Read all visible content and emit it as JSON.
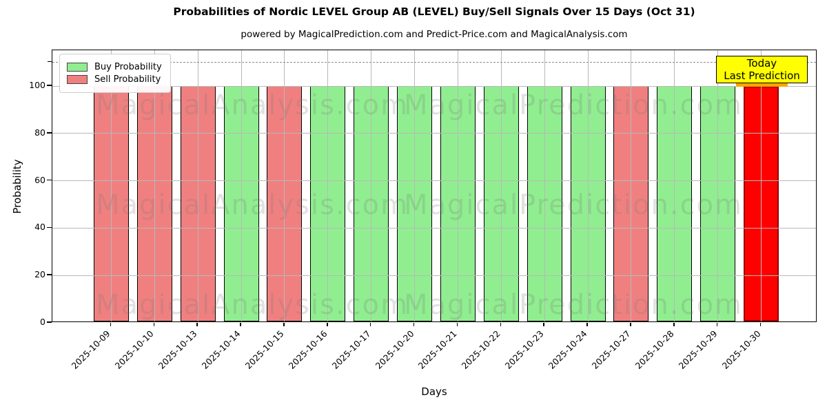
{
  "figure": {
    "title": "Probabilities of Nordic LEVEL Group AB (LEVEL) Buy/Sell Signals Over 15 Days (Oct 31)",
    "subtitle": "powered by MagicalPrediction.com and Predict-Price.com and MagicalAnalysis.com"
  },
  "axes": {
    "xlabel": "Days",
    "ylabel": "Probability",
    "yticks": [
      0,
      20,
      40,
      60,
      80,
      100
    ],
    "ylim": [
      0,
      115
    ],
    "dashed_line_y": 110,
    "grid": true
  },
  "legend": {
    "position": "upper left",
    "items": [
      {
        "label": "Buy Probability",
        "color": "#90EE90"
      },
      {
        "label": "Sell Probability",
        "color": "#F08080"
      }
    ]
  },
  "annotation": {
    "lines": [
      "Today",
      "Last Prediction"
    ],
    "bg_color": "#FFFF00"
  },
  "watermarks": {
    "left": "MagicalAnalysis.com",
    "right": "MagicalPrediction.com",
    "rows": 3
  },
  "colors": {
    "buy": "#90EE90",
    "sell": "#F08080",
    "today": "#FF0000",
    "today_edge": "#8B0000",
    "today_strip": "#FFA500",
    "grid": "#b8b8b8",
    "dashed": "#8a8a8a"
  },
  "chart_data": {
    "type": "bar",
    "title": "Probabilities of Nordic LEVEL Group AB (LEVEL) Buy/Sell Signals Over 15 Days (Oct 31)",
    "xlabel": "Days",
    "ylabel": "Probability",
    "ylim": [
      0,
      115
    ],
    "grid": true,
    "legend_position": "upper left",
    "dashed_line_y": 110,
    "categories": [
      "2025-10-09",
      "2025-10-10",
      "2025-10-13",
      "2025-10-14",
      "2025-10-15",
      "2025-10-16",
      "2025-10-17",
      "2025-10-20",
      "2025-10-21",
      "2025-10-22",
      "2025-10-23",
      "2025-10-24",
      "2025-10-27",
      "2025-10-28",
      "2025-10-29",
      "2025-10-30"
    ],
    "series": [
      {
        "name": "Buy Probability",
        "color": "#90EE90",
        "values": [
          0,
          0,
          0,
          100,
          0,
          100,
          100,
          100,
          100,
          100,
          100,
          100,
          0,
          100,
          100,
          0
        ]
      },
      {
        "name": "Sell Probability",
        "color": "#F08080",
        "values": [
          100,
          100,
          100,
          0,
          100,
          0,
          0,
          0,
          0,
          0,
          0,
          0,
          100,
          0,
          0,
          100
        ]
      }
    ],
    "bar_signals": [
      "sell",
      "sell",
      "sell",
      "buy",
      "sell",
      "buy",
      "buy",
      "buy",
      "buy",
      "buy",
      "buy",
      "buy",
      "sell",
      "buy",
      "buy",
      "today"
    ],
    "bar_values": [
      100,
      100,
      100,
      100,
      100,
      100,
      100,
      100,
      100,
      100,
      100,
      100,
      100,
      100,
      100,
      100
    ],
    "highlight": {
      "category": "2025-10-30",
      "color": "#FF0000",
      "label": "Today Last Prediction"
    }
  }
}
